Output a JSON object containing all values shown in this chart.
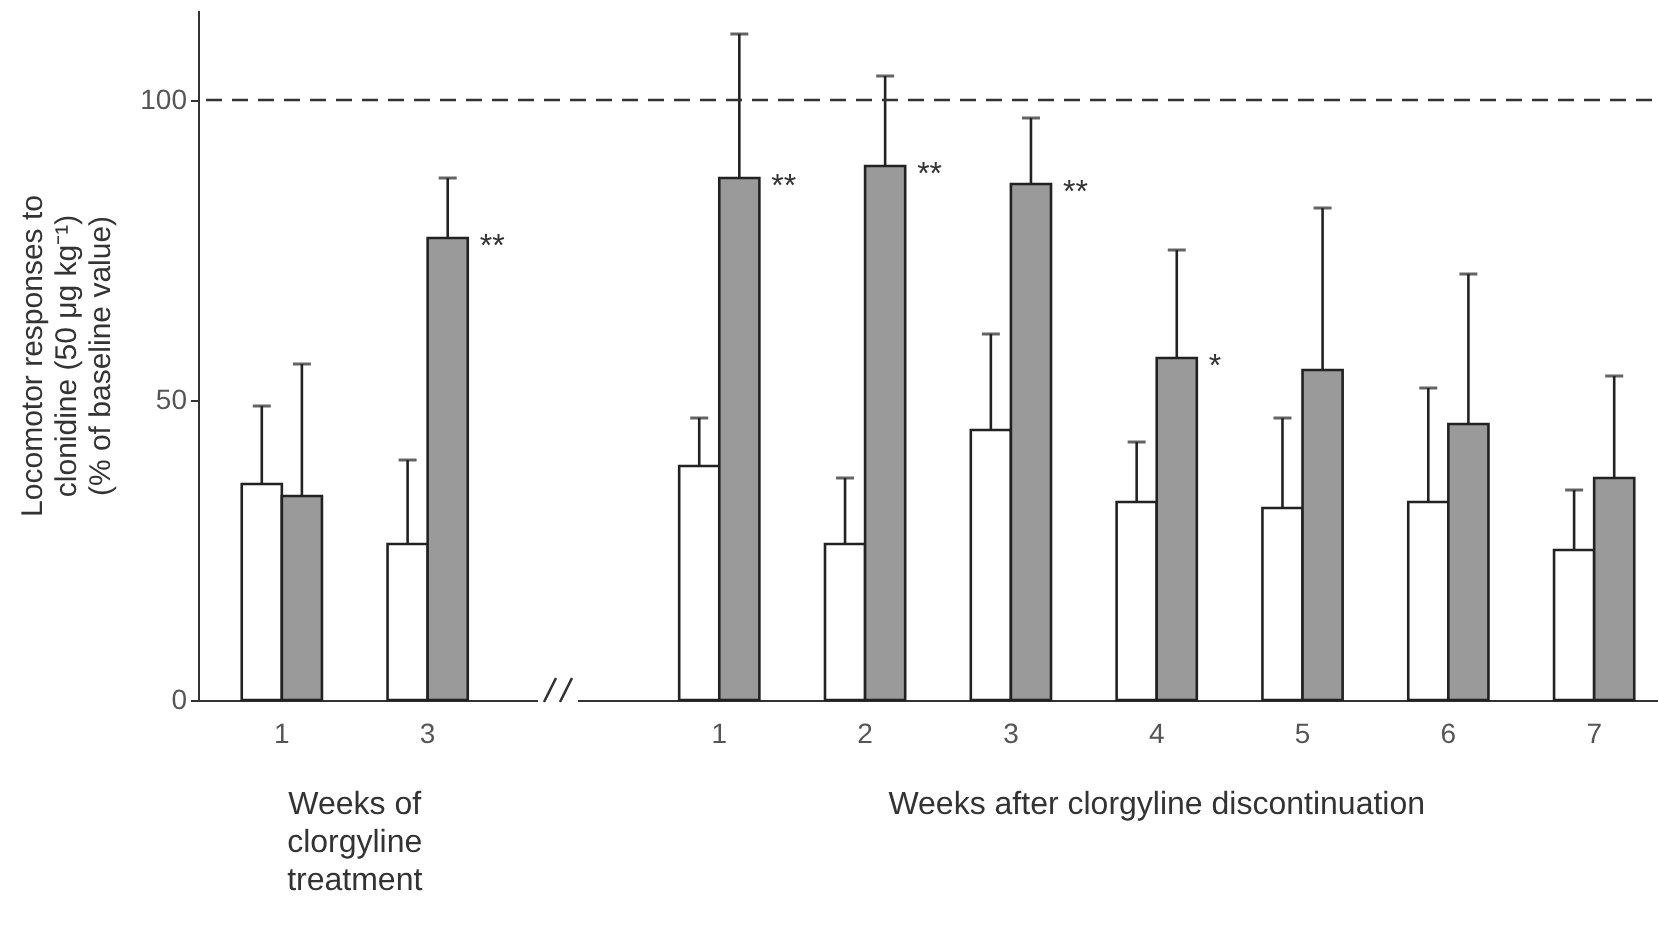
{
  "chart_data": {
    "type": "bar",
    "xlabel": "Weeks after clorgyline discontinuation",
    "ylabel": "Locomotor responses to clonidine (50 μg kg⁻¹) (% of baseline value)",
    "categories": [
      "1",
      "3",
      "1",
      "2",
      "3",
      "4",
      "5",
      "6",
      "7"
    ],
    "ylim": [
      0,
      115
    ],
    "yticks": [
      0,
      50,
      100
    ],
    "grid": false,
    "legend": false,
    "series": [
      {
        "color": "#ffffff",
        "values": [
          36,
          26,
          39,
          26,
          45,
          33,
          32,
          33,
          25
        ],
        "errors": [
          [
            36,
            49
          ],
          [
            26,
            40
          ],
          [
            39,
            47
          ],
          [
            26,
            37
          ],
          [
            45,
            61
          ],
          [
            33,
            43
          ],
          [
            32,
            47
          ],
          [
            33,
            52
          ],
          [
            25,
            35
          ]
        ]
      },
      {
        "color": "#9a9a9a",
        "values": [
          34,
          77,
          87,
          89,
          86,
          57,
          55,
          46,
          37
        ],
        "errors": [
          [
            34,
            56
          ],
          [
            77,
            87
          ],
          [
            87,
            111
          ],
          [
            89,
            104
          ],
          [
            86,
            97
          ],
          [
            57,
            75
          ],
          [
            55,
            82
          ],
          [
            46,
            71
          ],
          [
            37,
            54
          ]
        ]
      }
    ],
    "ref_lines": [
      {
        "axis": "y",
        "value": 100,
        "line_style": "dashed",
        "color": "#333333"
      }
    ],
    "annotations": [
      "Weeks of clorgyline treatment",
      {
        "text": "**",
        "x": "3",
        "y": 77
      },
      "**",
      {
        "text": "**",
        "x": "2",
        "y": 89
      },
      "**",
      {
        "text": "*",
        "x": "4",
        "y": 57
      }
    ]
  }
}
